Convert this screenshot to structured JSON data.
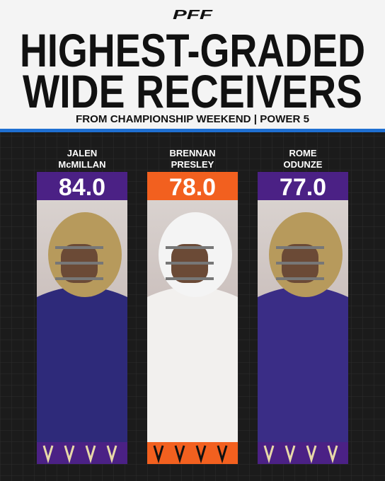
{
  "header": {
    "logo": "PFF",
    "title": [
      "HIGHEST-GRADED",
      "WIDE RECEIVERS"
    ],
    "subtitle": "FROM CHAMPIONSHIP WEEKEND | POWER 5"
  },
  "players": [
    {
      "name": [
        "JALEN",
        "McMILLAN"
      ],
      "grade": "84.0"
    },
    {
      "name": [
        "BRENNAN",
        "PRESLEY"
      ],
      "grade": "78.0"
    },
    {
      "name": [
        "ROME",
        "ODUNZE"
      ],
      "grade": "77.0"
    }
  ]
}
